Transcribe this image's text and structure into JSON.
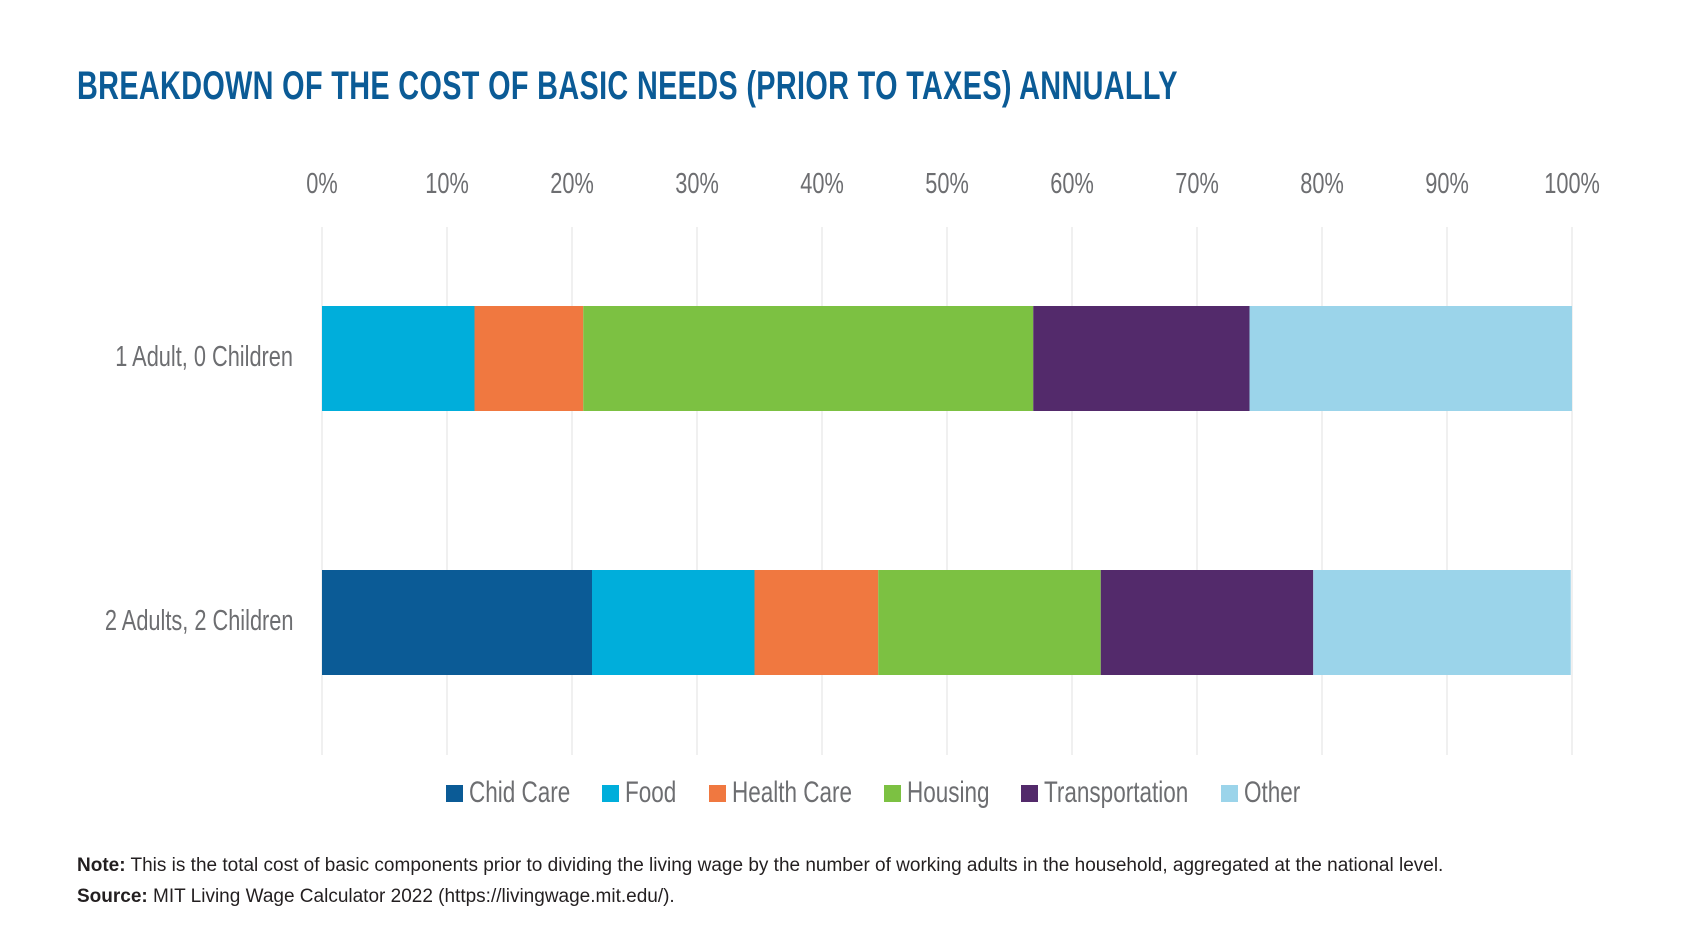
{
  "title": "BREAKDOWN OF THE COST OF BASIC NEEDS (PRIOR TO TAXES) ANNUALLY",
  "chart_data": {
    "type": "bar",
    "orientation": "horizontal",
    "stacked": "percent",
    "categories": [
      "1 Adult, 0 Children",
      "2 Adults, 2 Children"
    ],
    "xlim": [
      0,
      100
    ],
    "ticks": [
      "0%",
      "10%",
      "20%",
      "30%",
      "40%",
      "50%",
      "60%",
      "70%",
      "80%",
      "90%",
      "100%"
    ],
    "grid": true,
    "legend_position": "bottom",
    "series": [
      {
        "name": "Chid Care",
        "color": "#0b5b96",
        "values": [
          0,
          21.6
        ]
      },
      {
        "name": "Food",
        "color": "#00aedb",
        "values": [
          12.2,
          13.0
        ]
      },
      {
        "name": "Health Care",
        "color": "#f07840",
        "values": [
          8.7,
          9.9
        ]
      },
      {
        "name": "Housing",
        "color": "#7cc142",
        "values": [
          36.0,
          17.8
        ]
      },
      {
        "name": "Transportation",
        "color": "#532a6b",
        "values": [
          17.3,
          17.0
        ]
      },
      {
        "name": "Other",
        "color": "#9bd4ea",
        "values": [
          25.8,
          20.6
        ]
      }
    ]
  },
  "note": {
    "label": "Note:",
    "text": " This is the total cost of basic components prior to dividing the living wage by the number of working adults in the household, aggregated at the national level."
  },
  "source": {
    "label": "Source:",
    "text": " MIT Living Wage Calculator 2022 (https://livingwage.mit.edu/)."
  }
}
